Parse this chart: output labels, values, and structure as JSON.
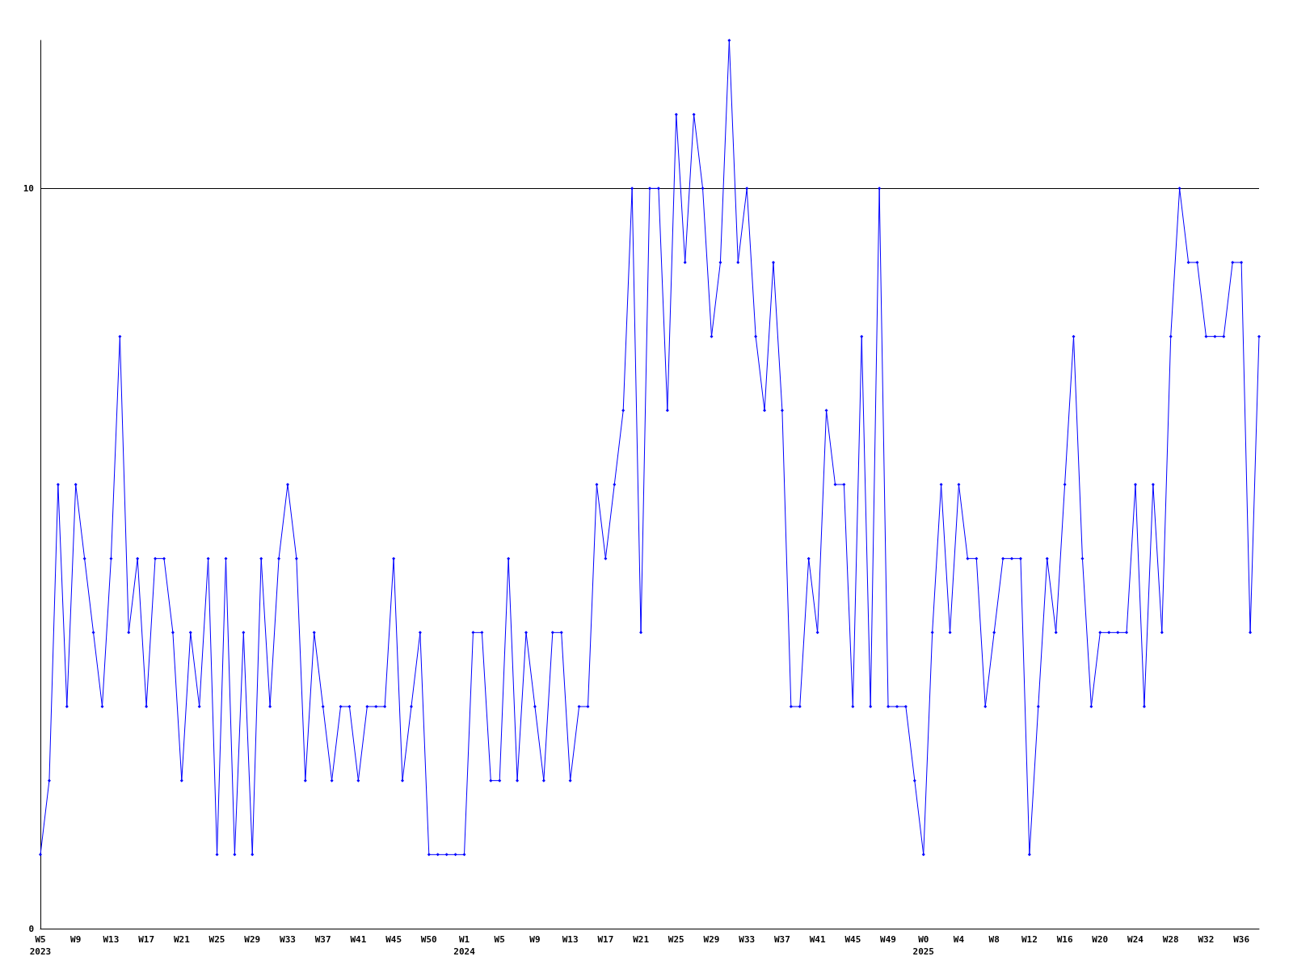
{
  "chart_data": {
    "type": "line",
    "categories": [
      "W5\n2023",
      null,
      null,
      null,
      "W9",
      null,
      null,
      null,
      "W13",
      null,
      null,
      null,
      "W17",
      null,
      null,
      null,
      "W21",
      null,
      null,
      null,
      "W25",
      null,
      null,
      null,
      "W29",
      null,
      null,
      null,
      "W33",
      null,
      null,
      null,
      "W37",
      null,
      null,
      null,
      "W41",
      null,
      null,
      null,
      "W45",
      null,
      null,
      null,
      "W50",
      null,
      null,
      null,
      "W1\n2024",
      null,
      null,
      null,
      "W5",
      null,
      null,
      null,
      "W9",
      null,
      null,
      null,
      "W13",
      null,
      null,
      null,
      "W17",
      null,
      null,
      null,
      "W21",
      null,
      null,
      null,
      "W25",
      null,
      null,
      null,
      "W29",
      null,
      null,
      null,
      "W33",
      null,
      null,
      null,
      "W37",
      null,
      null,
      null,
      "W41",
      null,
      null,
      null,
      "W45",
      null,
      null,
      null,
      "W49",
      null,
      null,
      null,
      "W0\n2025",
      null,
      null,
      null,
      "W4",
      null,
      null,
      null,
      "W8",
      null,
      null,
      null,
      "W12",
      null,
      null,
      null,
      "W16",
      null,
      null,
      null,
      "W20",
      null,
      null,
      null,
      "W24",
      null,
      null,
      null,
      "W28",
      null,
      null,
      null,
      "W32",
      null,
      null,
      null,
      "W36",
      null,
      null
    ],
    "values": [
      1,
      2,
      6,
      3,
      6,
      5,
      4,
      3,
      5,
      8,
      4,
      5,
      3,
      5,
      5,
      4,
      2,
      4,
      3,
      5,
      1,
      5,
      1,
      4,
      1,
      5,
      3,
      5,
      6,
      5,
      2,
      4,
      3,
      2,
      3,
      3,
      2,
      3,
      3,
      3,
      5,
      2,
      3,
      4,
      1,
      1,
      1,
      1,
      1,
      4,
      4,
      2,
      2,
      5,
      2,
      4,
      3,
      2,
      4,
      4,
      2,
      3,
      3,
      6,
      5,
      6,
      7,
      10,
      4,
      10,
      10,
      7,
      11,
      9,
      11,
      10,
      8,
      9,
      12,
      9,
      10,
      8,
      7,
      9,
      7,
      3,
      3,
      5,
      4,
      7,
      6,
      6,
      3,
      8,
      3,
      10,
      3,
      3,
      3,
      2,
      1,
      4,
      6,
      4,
      6,
      5,
      5,
      3,
      4,
      5,
      5,
      5,
      1,
      3,
      5,
      4,
      6,
      8,
      5,
      3,
      4,
      4,
      4,
      4,
      6,
      3,
      6,
      4,
      8,
      10,
      9,
      9,
      8,
      8,
      8,
      9,
      9,
      4,
      8
    ],
    "color": "#0000ff",
    "ylim": [
      0,
      12
    ],
    "yticks": [
      0,
      10
    ],
    "grid": "y",
    "marker": "diamond",
    "line_style": "solid"
  }
}
